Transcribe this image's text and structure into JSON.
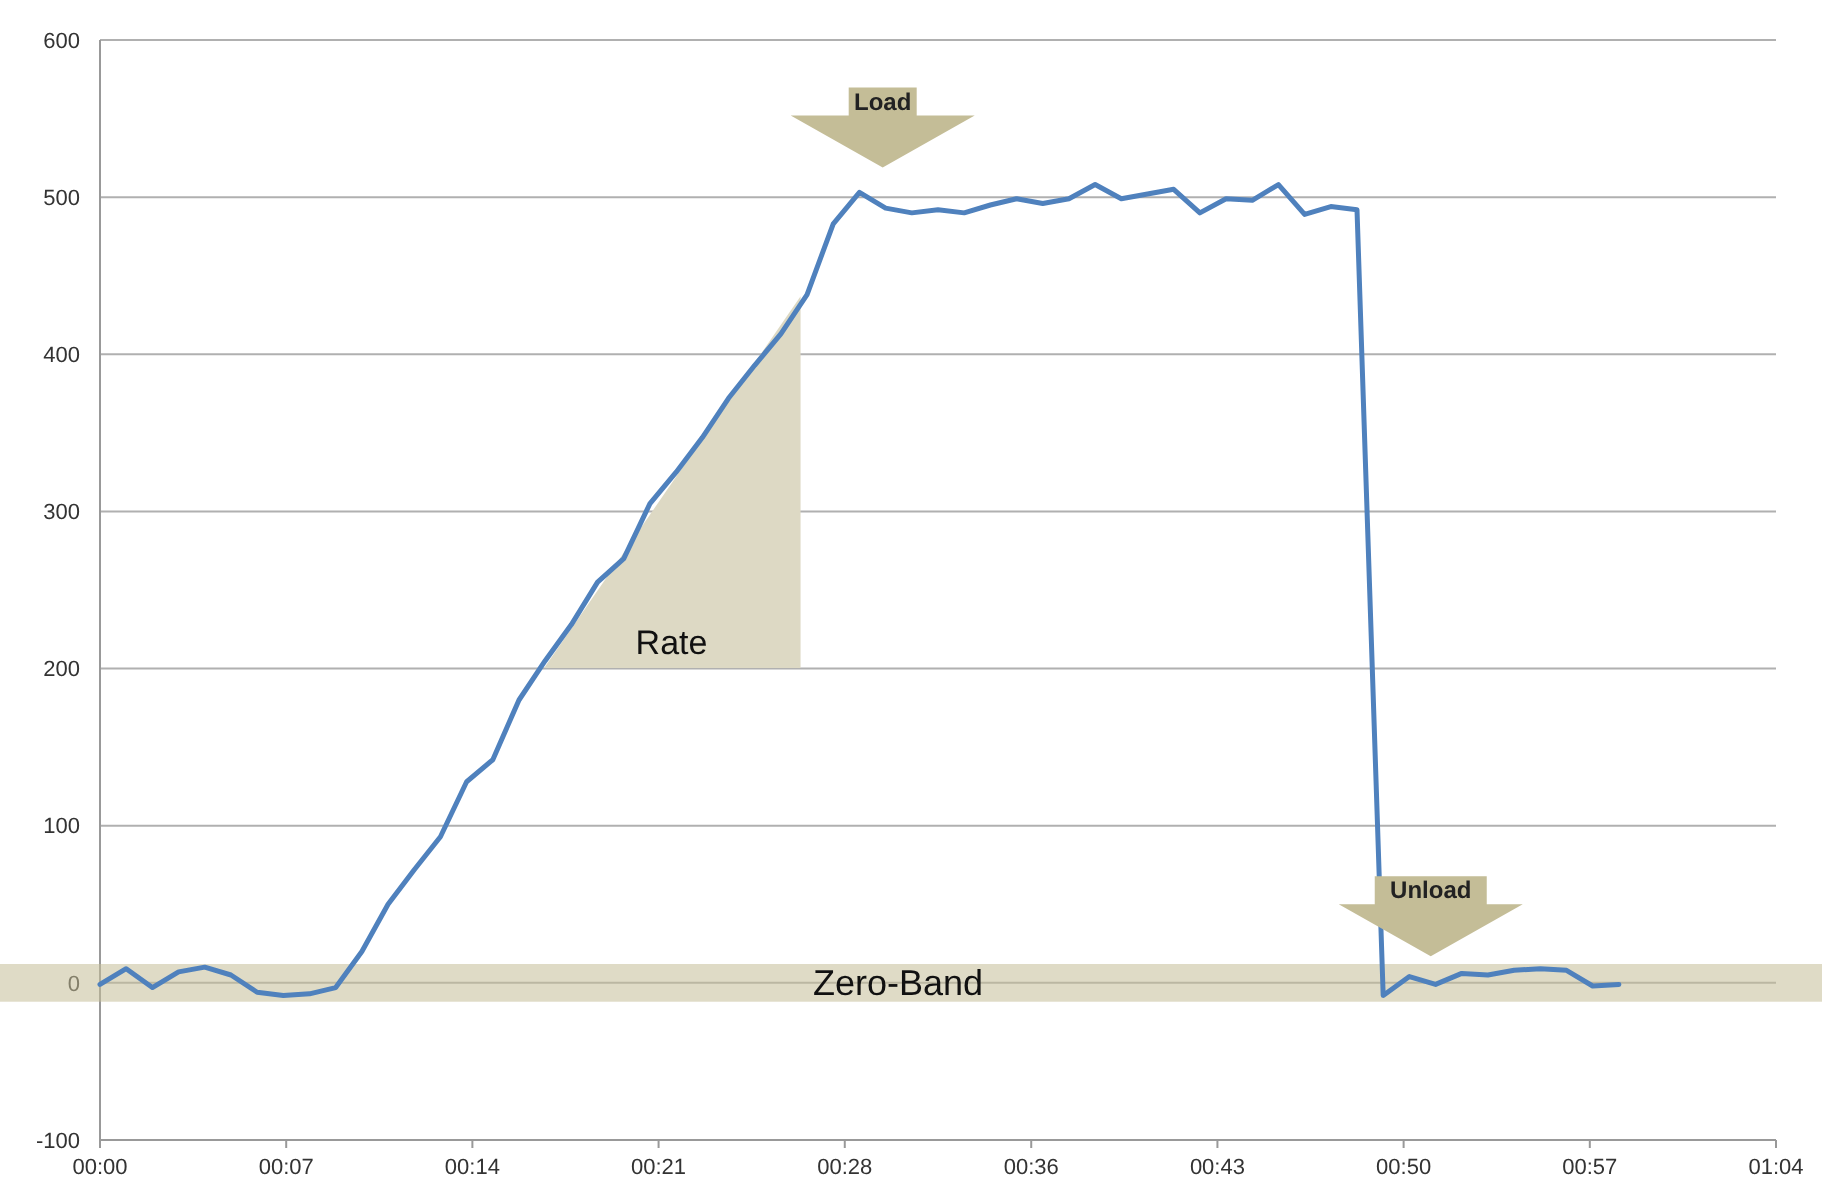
{
  "chart_data": {
    "type": "line",
    "x": [
      0,
      1,
      2,
      3,
      4,
      5,
      6,
      7,
      8,
      9,
      10,
      11,
      12,
      13,
      14,
      15,
      16,
      17,
      18,
      19,
      20,
      21,
      22,
      23,
      24,
      25,
      26,
      27,
      28,
      29,
      30,
      31,
      32,
      33,
      34,
      35,
      36,
      37,
      38,
      39,
      40,
      41,
      42,
      43,
      44,
      45,
      46,
      47,
      48,
      49,
      50,
      51,
      52,
      53,
      54,
      55,
      56,
      57,
      58
    ],
    "series": [
      {
        "color": "#4f81bd",
        "values": [
          -1,
          9,
          -3,
          7,
          10,
          5,
          -6,
          -8,
          -7,
          -3,
          20,
          50,
          72,
          93,
          128,
          142,
          180,
          205,
          228,
          255,
          270,
          305,
          325,
          347,
          372,
          393,
          413,
          438,
          483,
          503,
          493,
          490,
          492,
          490,
          495,
          499,
          496,
          499,
          508,
          499,
          502,
          505,
          490,
          499,
          498,
          508,
          489,
          494,
          492,
          -8,
          4,
          -1,
          6,
          5,
          8,
          9,
          8,
          -2,
          -1
        ]
      }
    ],
    "xlim": [
      0,
      64
    ],
    "ylim": [
      -100,
      600
    ],
    "xticks": [
      {
        "value": 0,
        "label": "00:00"
      },
      {
        "value": 7.11,
        "label": "00:07"
      },
      {
        "value": 14.22,
        "label": "00:14"
      },
      {
        "value": 21.33,
        "label": "00:21"
      },
      {
        "value": 28.44,
        "label": "00:28"
      },
      {
        "value": 35.56,
        "label": "00:36"
      },
      {
        "value": 42.67,
        "label": "00:43"
      },
      {
        "value": 49.78,
        "label": "00:50"
      },
      {
        "value": 56.89,
        "label": "00:57"
      },
      {
        "value": 64,
        "label": "01:04"
      }
    ],
    "yticks": [
      -100,
      0,
      100,
      200,
      300,
      400,
      500,
      600
    ],
    "grid": "y",
    "line_style": "solid",
    "marker": "none",
    "bands": [
      {
        "axis": "y",
        "from": -12,
        "to": 12,
        "label": "Zero-Band",
        "color": "#c4bd97"
      }
    ],
    "annotations": [
      "Load",
      "Unload",
      "Rate"
    ]
  }
}
